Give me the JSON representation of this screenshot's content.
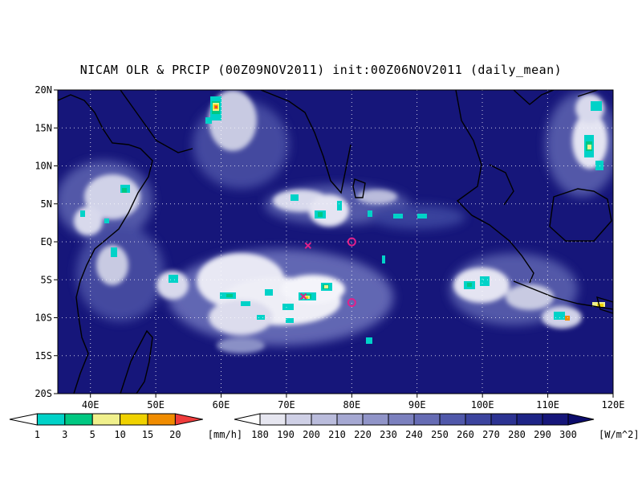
{
  "title": "NICAM OLR & PRCIP (00Z09NOV2011) init:00Z06NOV2011 (daily_mean)",
  "map": {
    "lat_ticks": [
      "20N",
      "15N",
      "10N",
      "5N",
      "EQ",
      "5S",
      "10S",
      "15S",
      "20S"
    ],
    "lon_ticks": [
      "40E",
      "50E",
      "60E",
      "70E",
      "80E",
      "90E",
      "100E",
      "110E",
      "120E"
    ],
    "lon_range": [
      35,
      120
    ],
    "lat_range": [
      -20,
      20
    ],
    "ocean_color": "#16167a",
    "grid": "dotted",
    "markers": [
      {
        "type": "cross",
        "lon": 73.3,
        "lat": -0.5,
        "color": "#e0208a"
      },
      {
        "type": "cross",
        "lon": 72.6,
        "lat": -7.2,
        "color": "#e0208a"
      },
      {
        "type": "circle",
        "lon": 80.0,
        "lat": 0.0,
        "color": "#e0208a"
      },
      {
        "type": "circle",
        "lon": 80.0,
        "lat": -8.0,
        "color": "#e0208a"
      }
    ]
  },
  "precip_legend": {
    "labels": [
      "1",
      "3",
      "5",
      "10",
      "15",
      "20"
    ],
    "unit": "[mm/h]",
    "colors": [
      "#ffffff",
      "#00d2c8",
      "#00c882",
      "#f0f08c",
      "#f0d200",
      "#f08c00",
      "#f03c3c"
    ]
  },
  "olr_legend": {
    "labels": [
      "180",
      "190",
      "200",
      "210",
      "220",
      "230",
      "240",
      "250",
      "260",
      "270",
      "280",
      "290",
      "300"
    ],
    "unit": "[W/m^2]",
    "colors": [
      "#ffffff",
      "#e6e6f0",
      "#cfd0e6",
      "#babcdc",
      "#a5a8d2",
      "#9094c8",
      "#7b80be",
      "#666cb4",
      "#5058aa",
      "#3c449e",
      "#2c3392",
      "#1e2486",
      "#16167a",
      "#0c0c6c"
    ]
  }
}
